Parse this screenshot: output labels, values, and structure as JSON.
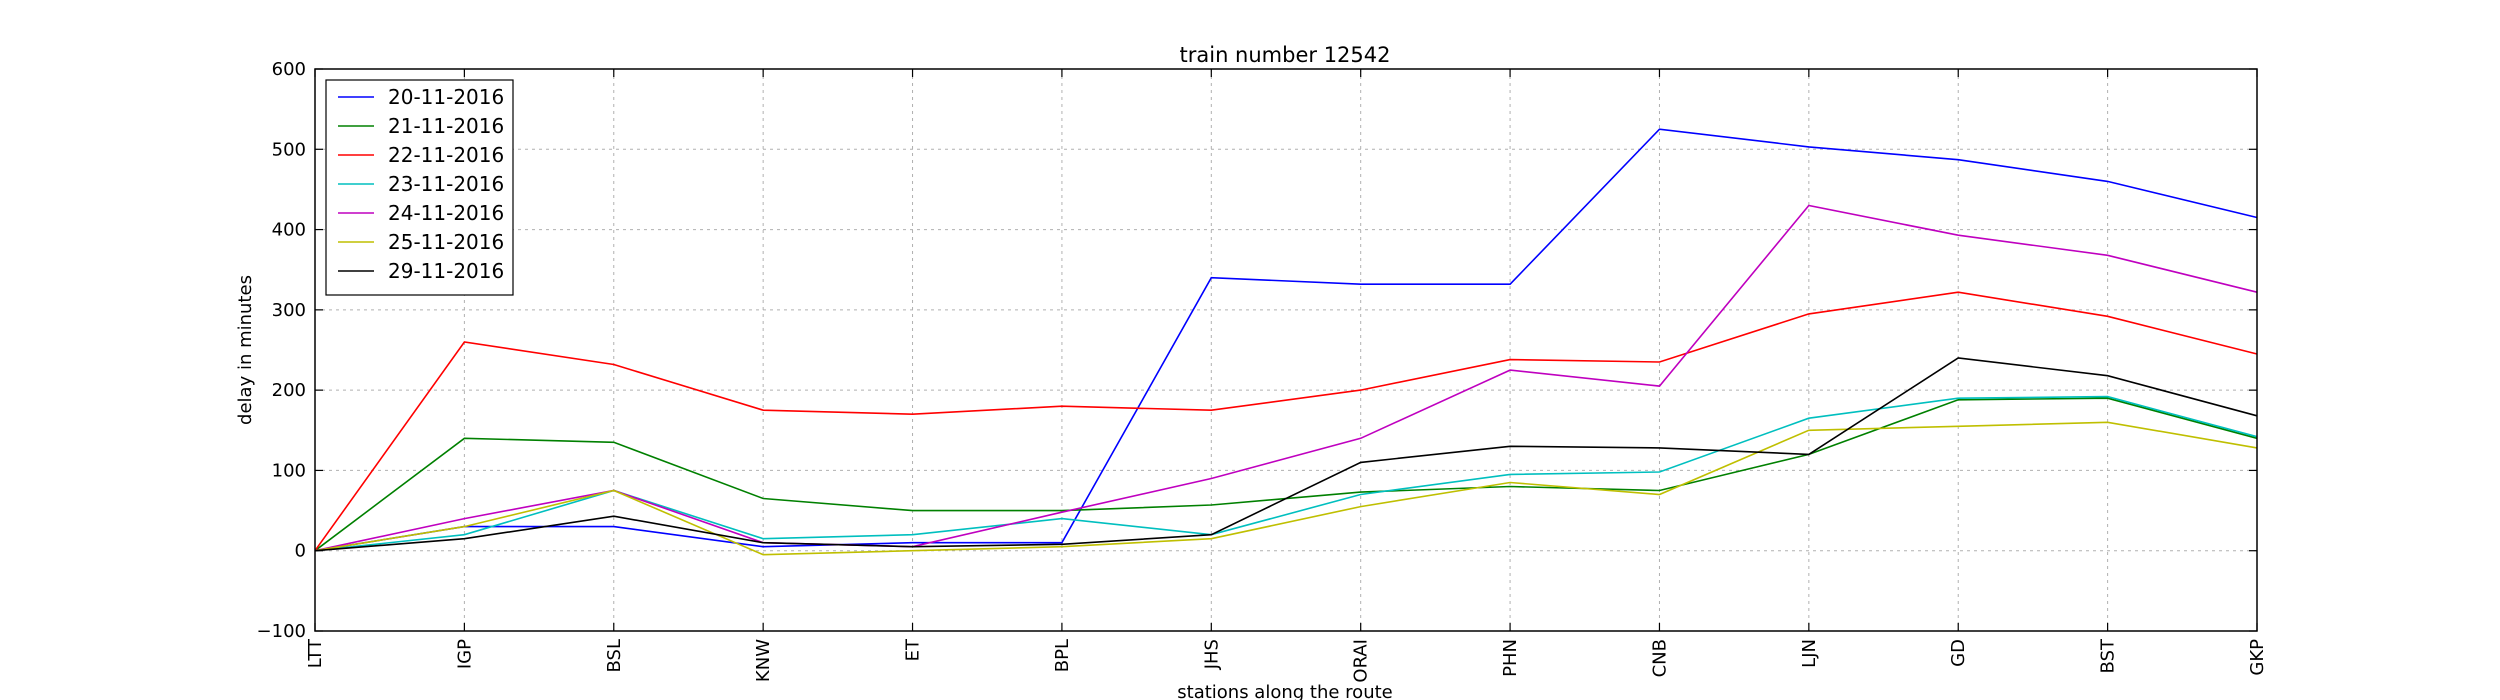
{
  "chart_data": {
    "type": "line",
    "title": "train number 12542",
    "xlabel": "stations along the route",
    "ylabel": "delay in minutes",
    "categories": [
      "LTT",
      "IGP",
      "BSL",
      "KNW",
      "ET",
      "BPL",
      "JHS",
      "ORAI",
      "PHN",
      "CNB",
      "LJN",
      "GD",
      "BST",
      "GKP"
    ],
    "ylim": [
      -100,
      600
    ],
    "yticks": [
      -100,
      0,
      100,
      200,
      300,
      400,
      500,
      600
    ],
    "grid": true,
    "legend_position": "top-left",
    "series": [
      {
        "name": "20-11-2016",
        "color": "#0000ff",
        "values": [
          0,
          30,
          30,
          5,
          10,
          10,
          340,
          332,
          332,
          525,
          503,
          487,
          460,
          415
        ]
      },
      {
        "name": "21-11-2016",
        "color": "#008000",
        "values": [
          0,
          140,
          135,
          65,
          50,
          50,
          57,
          73,
          80,
          75,
          120,
          188,
          190,
          140
        ]
      },
      {
        "name": "22-11-2016",
        "color": "#ff0000",
        "values": [
          0,
          260,
          232,
          175,
          170,
          180,
          175,
          200,
          238,
          235,
          295,
          322,
          292,
          245
        ]
      },
      {
        "name": "23-11-2016",
        "color": "#00bfbf",
        "values": [
          0,
          20,
          75,
          15,
          20,
          40,
          20,
          70,
          95,
          98,
          165,
          190,
          192,
          142
        ]
      },
      {
        "name": "24-11-2016",
        "color": "#bf00bf",
        "values": [
          0,
          40,
          75,
          10,
          5,
          48,
          90,
          140,
          225,
          205,
          430,
          393,
          368,
          322
        ]
      },
      {
        "name": "25-11-2016",
        "color": "#bfbf00",
        "values": [
          0,
          30,
          75,
          -5,
          0,
          5,
          15,
          55,
          85,
          70,
          150,
          155,
          160,
          128
        ]
      },
      {
        "name": "29-11-2016",
        "color": "#000000",
        "values": [
          0,
          15,
          43,
          10,
          5,
          8,
          20,
          110,
          130,
          128,
          120,
          240,
          218,
          168
        ]
      }
    ]
  }
}
